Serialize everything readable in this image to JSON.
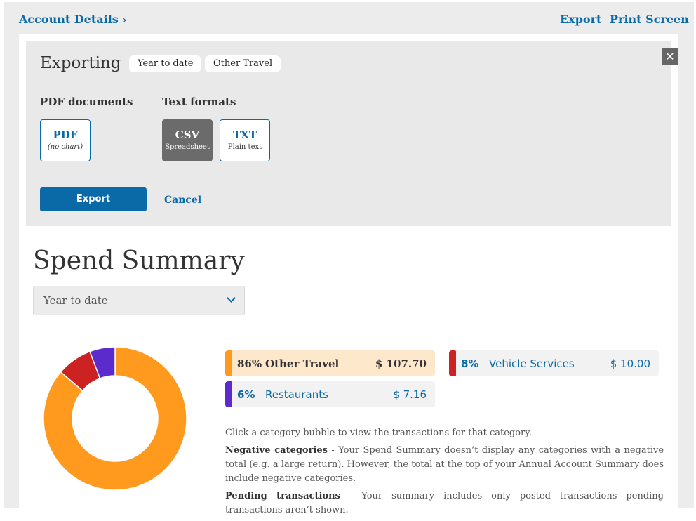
{
  "topbar": {
    "breadcrumb": "Account Details",
    "breadcrumb_chevron": "›",
    "export_link": "Export",
    "print_link": "Print Screen"
  },
  "export_panel": {
    "title": "Exporting",
    "chips": [
      "Year to date",
      "Other Travel"
    ],
    "close_glyph": "✕",
    "pdf_group_label": "PDF documents",
    "text_group_label": "Text formats",
    "formats": {
      "pdf": {
        "label": "PDF",
        "sub": "(no chart)"
      },
      "csv": {
        "label": "CSV",
        "sub": "Spreadsheet",
        "selected": true
      },
      "txt": {
        "label": "TXT",
        "sub": "Plain text"
      }
    },
    "export_button": "Export",
    "cancel_button": "Cancel"
  },
  "summary": {
    "title": "Spend Summary",
    "period_select": "Year to date"
  },
  "colors": {
    "accent": "#0a6aa8",
    "other_travel": "#ff9a1f",
    "vehicle_services": "#cc2222",
    "restaurants": "#5c2bcc"
  },
  "categories": [
    {
      "pct": "86%",
      "name": "Other Travel",
      "amount": "$ 107.70",
      "value": 107.7,
      "color": "#ff9a1f",
      "selected": true
    },
    {
      "pct": "8%",
      "name": "Vehicle Services",
      "amount": "$ 10.00",
      "value": 10.0,
      "color": "#cc2222",
      "selected": false
    },
    {
      "pct": "6%",
      "name": "Restaurants",
      "amount": "$ 7.16",
      "value": 7.16,
      "color": "#5c2bcc",
      "selected": false
    }
  ],
  "notes": {
    "hint": "Click a category bubble to view the transactions for that category.",
    "negative_title": "Negative categories",
    "negative_text": " - Your Spend Summary doesn’t display any categories with a negative total (e.g. a large return). However, the total at the top of your Annual Account Summary does include negative categories.",
    "pending_title": "Pending transactions",
    "pending_text": " - Your summary includes only posted transactions—pending transactions aren’t shown."
  }
}
